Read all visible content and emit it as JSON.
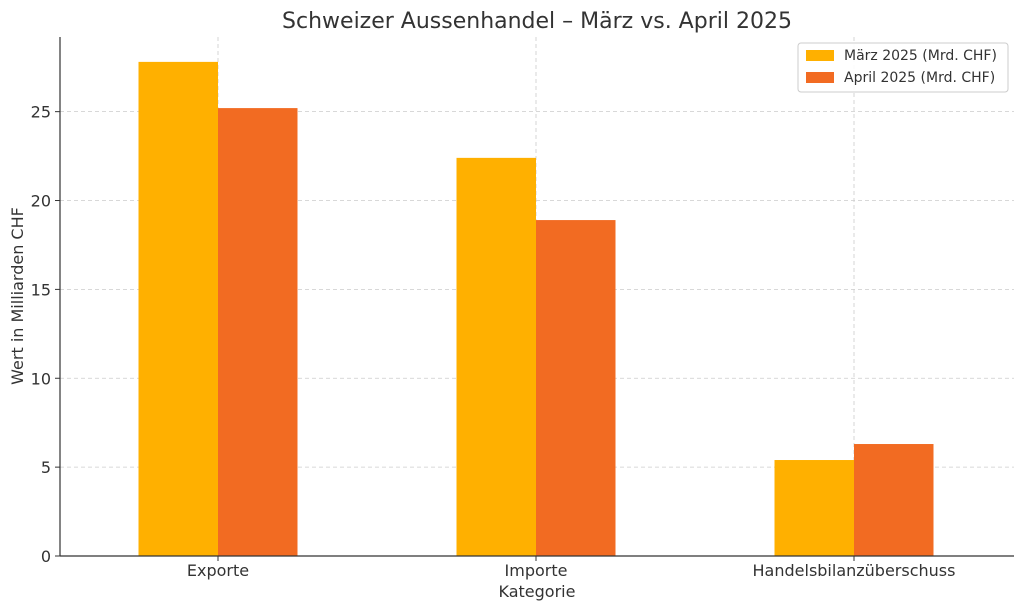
{
  "chart_data": {
    "type": "bar",
    "title": "Schweizer Aussenhandel – März vs. April 2025",
    "xlabel": "Kategorie",
    "ylabel": "Wert in Milliarden CHF",
    "categories": [
      "Exporte",
      "Importe",
      "Handelsbilanzüberschuss"
    ],
    "series": [
      {
        "name": "März 2025 (Mrd. CHF)",
        "values": [
          27.8,
          22.4,
          5.4
        ],
        "color": "#FFB000"
      },
      {
        "name": "April 2025 (Mrd. CHF)",
        "values": [
          25.2,
          18.9,
          6.3
        ],
        "color": "#F26B22"
      }
    ],
    "yticks": [
      0,
      5,
      10,
      15,
      20,
      25
    ],
    "ylim": [
      0,
      29.2
    ],
    "grid": true,
    "legend_position": "top-right"
  }
}
